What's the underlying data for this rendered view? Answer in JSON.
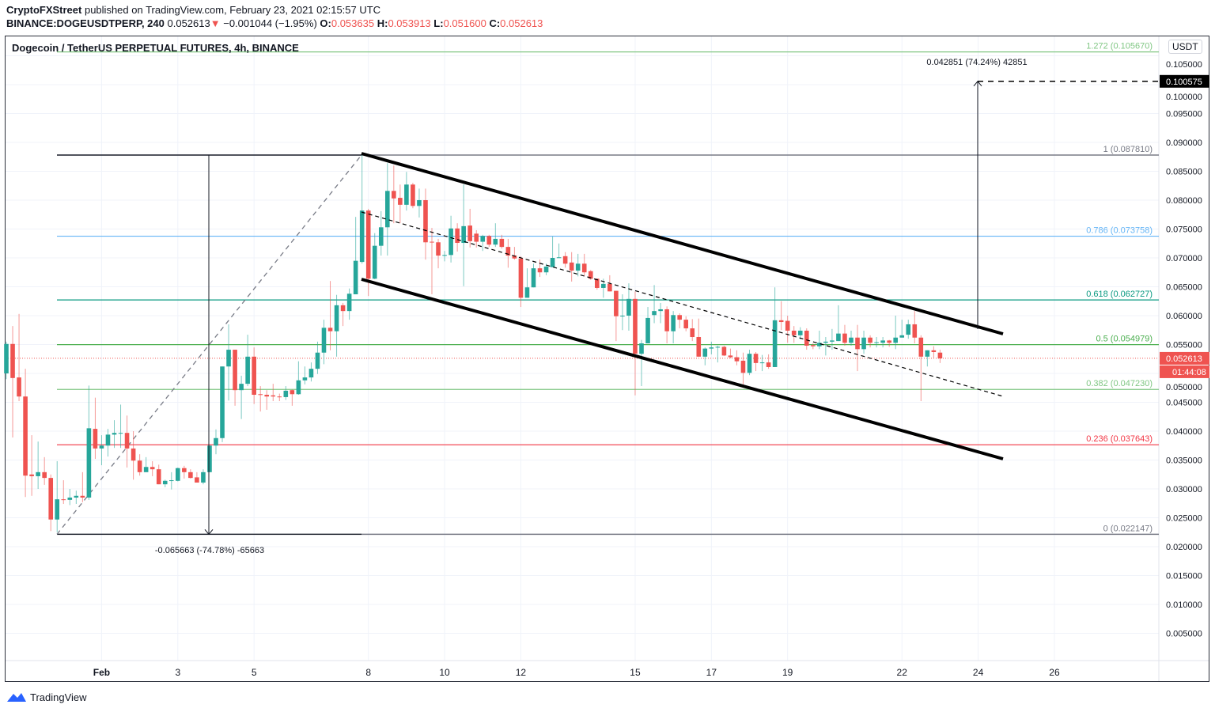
{
  "header": {
    "publisher": "CryptoFXStreet",
    "published": " published on TradingView.com, February 23, 2021 02:15:57 UTC",
    "symbol": "BINANCE:DOGEUSDTPERP, 240",
    "last": "0.052613",
    "change_arrow": "▼",
    "change": "−0.001044 (−1.95%)",
    "o_label": "O:",
    "o": "0.053635",
    "h_label": "H:",
    "h": "0.053913",
    "l_label": "L:",
    "l": "0.051600",
    "c_label": "C:",
    "c": "0.052613"
  },
  "chart_title": "Dogecoin / TetherUS PERPETUAL FUTURES, 4h, BINANCE",
  "currency": "USDT",
  "footer": {
    "brand": "TradingView"
  },
  "colors": {
    "up": "#26a69a",
    "down": "#ef5350"
  },
  "chart_data": {
    "type": "candlestick",
    "timeframe": "4h",
    "yaxis": {
      "min": 0.0,
      "max": 0.107,
      "ticks": [
        "0.005000",
        "0.010000",
        "0.015000",
        "0.020000",
        "0.025000",
        "0.030000",
        "0.035000",
        "0.040000",
        "0.045000",
        "0.050000",
        "0.055000",
        "0.060000",
        "0.065000",
        "0.070000",
        "0.075000",
        "0.080000",
        "0.085000",
        "0.090000",
        "0.095000",
        "0.100000",
        "0.105000"
      ]
    },
    "xaxis": {
      "ticks": [
        {
          "label": "Feb",
          "bar": 15
        },
        {
          "label": "3",
          "bar": 27
        },
        {
          "label": "5",
          "bar": 39
        },
        {
          "label": "8",
          "bar": 57
        },
        {
          "label": "10",
          "bar": 69
        },
        {
          "label": "12",
          "bar": 81
        },
        {
          "label": "15",
          "bar": 99
        },
        {
          "label": "17",
          "bar": 111
        },
        {
          "label": "19",
          "bar": 123
        },
        {
          "label": "22",
          "bar": 141
        },
        {
          "label": "24",
          "bar": 153
        },
        {
          "label": "26",
          "bar": 165
        }
      ]
    },
    "candles_ohlc": [
      [
        0.05,
        0.0555,
        0.049,
        0.0551
      ],
      [
        0.0551,
        0.0582,
        0.0389,
        0.0492
      ],
      [
        0.0493,
        0.0603,
        0.0452,
        0.046
      ],
      [
        0.046,
        0.0508,
        0.0286,
        0.0323
      ],
      [
        0.0325,
        0.0393,
        0.0288,
        0.0322
      ],
      [
        0.0322,
        0.0382,
        0.03,
        0.0329
      ],
      [
        0.0329,
        0.0355,
        0.0307,
        0.0319
      ],
      [
        0.0319,
        0.0325,
        0.0227,
        0.0247
      ],
      [
        0.0247,
        0.0348,
        0.0225,
        0.0282
      ],
      [
        0.0282,
        0.0315,
        0.0274,
        0.0281
      ],
      [
        0.0281,
        0.03,
        0.0272,
        0.0285
      ],
      [
        0.0285,
        0.0297,
        0.0274,
        0.0288
      ],
      [
        0.0288,
        0.0329,
        0.0277,
        0.0285
      ],
      [
        0.0285,
        0.0479,
        0.0281,
        0.0405
      ],
      [
        0.0404,
        0.0458,
        0.0352,
        0.037
      ],
      [
        0.037,
        0.0393,
        0.0341,
        0.0375
      ],
      [
        0.0375,
        0.0404,
        0.0356,
        0.0394
      ],
      [
        0.0394,
        0.0419,
        0.0371,
        0.0397
      ],
      [
        0.0396,
        0.0446,
        0.0371,
        0.0397
      ],
      [
        0.0397,
        0.0427,
        0.0337,
        0.037
      ],
      [
        0.037,
        0.04,
        0.0316,
        0.0349
      ],
      [
        0.0349,
        0.036,
        0.0323,
        0.0329
      ],
      [
        0.0329,
        0.0355,
        0.0329,
        0.0338
      ],
      [
        0.0338,
        0.0348,
        0.0322,
        0.0334
      ],
      [
        0.0334,
        0.0342,
        0.0308,
        0.0308
      ],
      [
        0.0308,
        0.0316,
        0.0303,
        0.0314
      ],
      [
        0.0314,
        0.0329,
        0.0299,
        0.0315
      ],
      [
        0.0314,
        0.0337,
        0.0313,
        0.0336
      ],
      [
        0.0336,
        0.034,
        0.0318,
        0.0329
      ],
      [
        0.0329,
        0.0334,
        0.0318,
        0.0319
      ],
      [
        0.032,
        0.0329,
        0.0311,
        0.0311
      ],
      [
        0.0311,
        0.0334,
        0.0308,
        0.0329
      ],
      [
        0.0329,
        0.0375,
        0.0329,
        0.0375
      ],
      [
        0.0375,
        0.0403,
        0.036,
        0.0388
      ],
      [
        0.0388,
        0.0512,
        0.0381,
        0.0512
      ],
      [
        0.0512,
        0.0585,
        0.0453,
        0.0541
      ],
      [
        0.0541,
        0.0541,
        0.0444,
        0.0471
      ],
      [
        0.0471,
        0.0496,
        0.0421,
        0.0482
      ],
      [
        0.0482,
        0.0567,
        0.0478,
        0.0529
      ],
      [
        0.0529,
        0.0545,
        0.0447,
        0.0463
      ],
      [
        0.0464,
        0.0478,
        0.0434,
        0.0463
      ],
      [
        0.0463,
        0.0471,
        0.0437,
        0.046
      ],
      [
        0.0462,
        0.0482,
        0.0452,
        0.046
      ],
      [
        0.046,
        0.0465,
        0.0452,
        0.0459
      ],
      [
        0.0459,
        0.0478,
        0.0454,
        0.047
      ],
      [
        0.0471,
        0.0472,
        0.0444,
        0.0464
      ],
      [
        0.0464,
        0.0521,
        0.0463,
        0.0488
      ],
      [
        0.0488,
        0.0512,
        0.0481,
        0.0493
      ],
      [
        0.0493,
        0.0519,
        0.0486,
        0.0508
      ],
      [
        0.0508,
        0.0555,
        0.0499,
        0.0536
      ],
      [
        0.0536,
        0.0593,
        0.0516,
        0.0579
      ],
      [
        0.0579,
        0.066,
        0.054,
        0.0573
      ],
      [
        0.0573,
        0.0636,
        0.0529,
        0.0618
      ],
      [
        0.0618,
        0.0622,
        0.0582,
        0.0608
      ],
      [
        0.0608,
        0.0647,
        0.0593,
        0.0638
      ],
      [
        0.0637,
        0.0771,
        0.0637,
        0.0695
      ],
      [
        0.0693,
        0.0881,
        0.069,
        0.0782
      ],
      [
        0.0782,
        0.0785,
        0.0634,
        0.0664
      ],
      [
        0.0664,
        0.0743,
        0.0663,
        0.0721
      ],
      [
        0.0721,
        0.0781,
        0.0704,
        0.0753
      ],
      [
        0.0753,
        0.0864,
        0.0704,
        0.0816
      ],
      [
        0.0816,
        0.086,
        0.076,
        0.0803
      ],
      [
        0.0804,
        0.0827,
        0.076,
        0.0792
      ],
      [
        0.0792,
        0.0849,
        0.0782,
        0.0827
      ],
      [
        0.0827,
        0.083,
        0.0786,
        0.079
      ],
      [
        0.079,
        0.082,
        0.077,
        0.08
      ],
      [
        0.08,
        0.082,
        0.0697,
        0.0727
      ],
      [
        0.0728,
        0.0752,
        0.0637,
        0.0727
      ],
      [
        0.0727,
        0.0733,
        0.0682,
        0.0704
      ],
      [
        0.0704,
        0.0712,
        0.0694,
        0.0705
      ],
      [
        0.0705,
        0.0773,
        0.0692,
        0.0751
      ],
      [
        0.0751,
        0.076,
        0.0711,
        0.0726
      ],
      [
        0.0726,
        0.0827,
        0.0651,
        0.0755
      ],
      [
        0.0756,
        0.0785,
        0.0718,
        0.0729
      ],
      [
        0.0742,
        0.0748,
        0.0718,
        0.0728
      ],
      [
        0.0728,
        0.074,
        0.0712,
        0.0738
      ],
      [
        0.0738,
        0.074,
        0.0719,
        0.0723
      ],
      [
        0.0723,
        0.076,
        0.0719,
        0.0733
      ],
      [
        0.0733,
        0.074,
        0.0716,
        0.0719
      ],
      [
        0.0719,
        0.0733,
        0.0683,
        0.0704
      ],
      [
        0.0704,
        0.0719,
        0.0697,
        0.0699
      ],
      [
        0.0699,
        0.0703,
        0.0615,
        0.0631
      ],
      [
        0.0631,
        0.0682,
        0.0631,
        0.0649
      ],
      [
        0.0649,
        0.069,
        0.0649,
        0.0682
      ],
      [
        0.0682,
        0.0697,
        0.0667,
        0.0675
      ],
      [
        0.0675,
        0.069,
        0.067,
        0.0685
      ],
      [
        0.0684,
        0.0737,
        0.0684,
        0.07
      ],
      [
        0.07,
        0.0725,
        0.07,
        0.0701
      ],
      [
        0.0703,
        0.071,
        0.0683,
        0.069
      ],
      [
        0.0692,
        0.071,
        0.0659,
        0.0678
      ],
      [
        0.0678,
        0.0707,
        0.0668,
        0.069
      ],
      [
        0.069,
        0.0707,
        0.0668,
        0.0675
      ],
      [
        0.0677,
        0.0679,
        0.0662,
        0.0664
      ],
      [
        0.0664,
        0.0664,
        0.0645,
        0.0648
      ],
      [
        0.0648,
        0.0664,
        0.0631,
        0.0655
      ],
      [
        0.0655,
        0.067,
        0.0642,
        0.0642
      ],
      [
        0.0643,
        0.0643,
        0.0556,
        0.0599
      ],
      [
        0.0599,
        0.0637,
        0.0575,
        0.06
      ],
      [
        0.06,
        0.0656,
        0.0574,
        0.0629
      ],
      [
        0.0629,
        0.0642,
        0.0462,
        0.0534
      ],
      [
        0.0534,
        0.0558,
        0.0478,
        0.0552
      ],
      [
        0.0552,
        0.0615,
        0.0552,
        0.0596
      ],
      [
        0.0601,
        0.0653,
        0.0587,
        0.0608
      ],
      [
        0.0608,
        0.0622,
        0.0587,
        0.0611
      ],
      [
        0.0611,
        0.0616,
        0.0552,
        0.0573
      ],
      [
        0.0573,
        0.0608,
        0.0552,
        0.0601
      ],
      [
        0.0601,
        0.0604,
        0.0578,
        0.0593
      ],
      [
        0.0593,
        0.0599,
        0.0573,
        0.0578
      ],
      [
        0.0578,
        0.0594,
        0.0556,
        0.0563
      ],
      [
        0.0563,
        0.0595,
        0.0529,
        0.0529
      ],
      [
        0.0529,
        0.0545,
        0.0514,
        0.0543
      ],
      [
        0.0543,
        0.0555,
        0.0533,
        0.0545
      ],
      [
        0.0545,
        0.0548,
        0.0519,
        0.0546
      ],
      [
        0.0546,
        0.0548,
        0.053,
        0.0531
      ],
      [
        0.0531,
        0.0543,
        0.0526,
        0.0528
      ],
      [
        0.0528,
        0.054,
        0.0514,
        0.0521
      ],
      [
        0.0522,
        0.0536,
        0.0481,
        0.0501
      ],
      [
        0.0501,
        0.0541,
        0.0497,
        0.0534
      ],
      [
        0.0534,
        0.0537,
        0.0504,
        0.0518
      ],
      [
        0.0518,
        0.0532,
        0.0504,
        0.0519
      ],
      [
        0.0519,
        0.0533,
        0.0508,
        0.0511
      ],
      [
        0.0511,
        0.0649,
        0.0511,
        0.0592
      ],
      [
        0.0592,
        0.0625,
        0.0575,
        0.0589
      ],
      [
        0.0591,
        0.06,
        0.0553,
        0.0574
      ],
      [
        0.0574,
        0.0582,
        0.0553,
        0.0566
      ],
      [
        0.0566,
        0.058,
        0.0559,
        0.0574
      ],
      [
        0.0574,
        0.0578,
        0.0541,
        0.0548
      ],
      [
        0.0549,
        0.0552,
        0.0542,
        0.0547
      ],
      [
        0.0547,
        0.0574,
        0.0542,
        0.0553
      ],
      [
        0.0553,
        0.0563,
        0.0531,
        0.0555
      ],
      [
        0.0555,
        0.0577,
        0.0541,
        0.0557
      ],
      [
        0.0556,
        0.0618,
        0.0556,
        0.0569
      ],
      [
        0.0569,
        0.0584,
        0.0548,
        0.0553
      ],
      [
        0.0553,
        0.0574,
        0.0548,
        0.0562
      ],
      [
        0.0562,
        0.0584,
        0.0504,
        0.0542
      ],
      [
        0.0542,
        0.0574,
        0.0534,
        0.0562
      ],
      [
        0.0562,
        0.0566,
        0.0545,
        0.0553
      ],
      [
        0.0553,
        0.0563,
        0.0545,
        0.0554
      ],
      [
        0.0553,
        0.0563,
        0.0545,
        0.0557
      ],
      [
        0.0557,
        0.0558,
        0.0546,
        0.0553
      ],
      [
        0.0553,
        0.06,
        0.0542,
        0.0562
      ],
      [
        0.0562,
        0.0593,
        0.0562,
        0.0566
      ],
      [
        0.0567,
        0.0593,
        0.056,
        0.0585
      ],
      [
        0.0585,
        0.0608,
        0.0552,
        0.0562
      ],
      [
        0.0562,
        0.0566,
        0.0452,
        0.0529
      ],
      [
        0.0529,
        0.054,
        0.0512,
        0.054
      ],
      [
        0.054,
        0.0547,
        0.0527,
        0.0537
      ],
      [
        0.0536,
        0.0541,
        0.0518,
        0.0526
      ]
    ],
    "fib_retracement": [
      {
        "level": "1.272",
        "price": "0.105670",
        "label": "1.272 (0.105670)",
        "color": "#81c784"
      },
      {
        "level": "1",
        "price": "0.087810",
        "label": "1 (0.087810)",
        "color": "#787b86"
      },
      {
        "level": "0.786",
        "price": "0.073758",
        "label": "0.786 (0.073758)",
        "color": "#64b5f6"
      },
      {
        "level": "0.618",
        "price": "0.062727",
        "label": "0.618 (0.062727)",
        "color": "#089981"
      },
      {
        "level": "0.5",
        "price": "0.054979",
        "label": "0.5 (0.054979)",
        "color": "#4caf50"
      },
      {
        "level": "0.382",
        "price": "0.047230",
        "label": "0.382 (0.047230)",
        "color": "#81c784"
      },
      {
        "level": "0.236",
        "price": "0.037643",
        "label": "0.236 (0.037643)",
        "color": "#f23645"
      },
      {
        "level": "0",
        "price": "0.022147",
        "label": "0 (0.022147)",
        "color": "#787b86"
      }
    ],
    "annotations": {
      "drop_measure": "-0.065663 (-74.78%) -65663",
      "target_measure": "0.042851 (74.24%) 42851",
      "target_price": "0.100575",
      "current_price": "0.052613",
      "countdown": "01:44:08"
    },
    "channel": "descending parallel channel"
  }
}
